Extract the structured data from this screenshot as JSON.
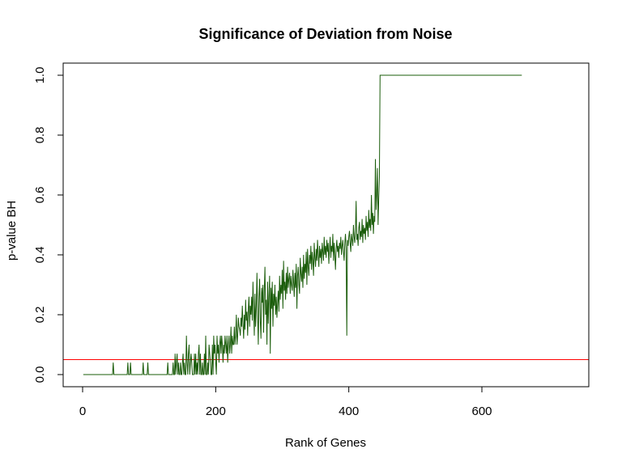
{
  "chart_data": {
    "type": "line",
    "title": "Significance of Deviation from Noise",
    "xlabel": "Rank of Genes",
    "ylabel": "p-value BH",
    "xlim": [
      1,
      731
    ],
    "ylim": [
      0,
      1
    ],
    "x_ticks": [
      0,
      200,
      400,
      600
    ],
    "y_ticks": [
      0.0,
      0.2,
      0.4,
      0.6,
      0.8,
      1.0
    ],
    "x_tick_labels": [
      "0",
      "200",
      "400",
      "600"
    ],
    "y_tick_labels": [
      "0.0",
      "0.2",
      "0.4",
      "0.6",
      "0.8",
      "1.0"
    ],
    "grid": false,
    "series": [
      {
        "color": "#1a5c0a",
        "x_start": 1,
        "x_step": 1,
        "values": [
          0,
          0,
          0,
          0,
          0,
          0,
          0,
          0,
          0,
          0,
          0,
          0,
          0,
          0,
          0,
          0,
          0,
          0,
          0,
          0,
          0,
          0,
          0,
          0,
          0,
          0,
          0,
          0,
          0,
          0,
          0,
          0,
          0,
          0,
          0,
          0,
          0,
          0,
          0,
          0,
          0,
          0,
          0,
          0,
          0,
          0.04,
          0,
          0,
          0,
          0,
          0,
          0,
          0,
          0,
          0,
          0,
          0,
          0,
          0,
          0,
          0,
          0,
          0,
          0,
          0,
          0,
          0,
          0.04,
          0,
          0,
          0,
          0.04,
          0,
          0,
          0,
          0,
          0,
          0,
          0,
          0,
          0,
          0,
          0,
          0,
          0,
          0,
          0,
          0,
          0,
          0,
          0.04,
          0,
          0,
          0,
          0,
          0,
          0,
          0.04,
          0,
          0,
          0,
          0,
          0,
          0,
          0,
          0,
          0,
          0,
          0,
          0,
          0,
          0,
          0,
          0,
          0,
          0,
          0,
          0,
          0,
          0,
          0,
          0,
          0,
          0,
          0,
          0,
          0,
          0.04,
          0,
          0,
          0,
          0,
          0,
          0,
          0,
          0.04,
          0,
          0,
          0.07,
          0,
          0.04,
          0.07,
          0,
          0.04,
          0,
          0,
          0.04,
          0,
          0,
          0.04,
          0.07,
          0,
          0.04,
          0,
          0,
          0.13,
          0.04,
          0,
          0.07,
          0.1,
          0,
          0.04,
          0.07,
          0.04,
          0,
          0,
          0,
          0.07,
          0,
          0.07,
          0,
          0.04,
          0,
          0.07,
          0.1,
          0,
          0.07,
          0,
          0,
          0.04,
          0,
          0,
          0.07,
          0,
          0.13,
          0,
          0,
          0.04,
          0,
          0.1,
          0.07,
          0.04,
          0,
          0,
          0.1,
          0,
          0.13,
          0.07,
          0.1,
          0.04,
          0,
          0.13,
          0.07,
          0.1,
          0.04,
          0.1,
          0.13,
          0.07,
          0.13,
          0.1,
          0.04,
          0.1,
          0.07,
          0.13,
          0.1,
          0.07,
          0.13,
          0.04,
          0.1,
          0.13,
          0.07,
          0.1,
          0.16,
          0.07,
          0.13,
          0.1,
          0.1,
          0.16,
          0.1,
          0.13,
          0.2,
          0.1,
          0.13,
          0.19,
          0.16,
          0.15,
          0.13,
          0.19,
          0.16,
          0.23,
          0.17,
          0.12,
          0.2,
          0.15,
          0.25,
          0.18,
          0.21,
          0.13,
          0.22,
          0.26,
          0.16,
          0.23,
          0.2,
          0.26,
          0.18,
          0.31,
          0.22,
          0.13,
          0.27,
          0.16,
          0.23,
          0.34,
          0.2,
          0.1,
          0.26,
          0.32,
          0.18,
          0.12,
          0.29,
          0.24,
          0.3,
          0.14,
          0.28,
          0.36,
          0.2,
          0.25,
          0.1,
          0.31,
          0.17,
          0.26,
          0.33,
          0.07,
          0.29,
          0.22,
          0.31,
          0.16,
          0.27,
          0.23,
          0.3,
          0.2,
          0.26,
          0.19,
          0.24,
          0.28,
          0.21,
          0.33,
          0.25,
          0.3,
          0.27,
          0.35,
          0.22,
          0.38,
          0.28,
          0.31,
          0.25,
          0.34,
          0.27,
          0.36,
          0.29,
          0.32,
          0.34,
          0.27,
          0.33,
          0.3,
          0.28,
          0.35,
          0.31,
          0.26,
          0.34,
          0.29,
          0.37,
          0.22,
          0.33,
          0.36,
          0.3,
          0.27,
          0.39,
          0.34,
          0.31,
          0.36,
          0.29,
          0.4,
          0.32,
          0.37,
          0.34,
          0.41,
          0.3,
          0.42,
          0.36,
          0.33,
          0.4,
          0.37,
          0.43,
          0.35,
          0.41,
          0.38,
          0.33,
          0.44,
          0.39,
          0.36,
          0.42,
          0.38,
          0.45,
          0.4,
          0.36,
          0.43,
          0.39,
          0.42,
          0.37,
          0.44,
          0.41,
          0.38,
          0.46,
          0.4,
          0.43,
          0.39,
          0.45,
          0.41,
          0.44,
          0.37,
          0.42,
          0.46,
          0.39,
          0.43,
          0.41,
          0.47,
          0.38,
          0.44,
          0.4,
          0.35,
          0.42,
          0.45,
          0.41,
          0.43,
          0.39,
          0.44,
          0.42,
          0.46,
          0.4,
          0.43,
          0.45,
          0.41,
          0.38,
          0.44,
          0.47,
          0.42,
          0.13,
          0.45,
          0.43,
          0.46,
          0.48,
          0.44,
          0.41,
          0.47,
          0.45,
          0.43,
          0.5,
          0.46,
          0.44,
          0.48,
          0.58,
          0.45,
          0.47,
          0.43,
          0.49,
          0.51,
          0.45,
          0.48,
          0.46,
          0.52,
          0.44,
          0.5,
          0.47,
          0.49,
          0.45,
          0.53,
          0.48,
          0.51,
          0.46,
          0.55,
          0.49,
          0.52,
          0.48,
          0.6,
          0.5,
          0.54,
          0.47,
          0.53,
          0.51,
          0.72,
          0.55,
          0.6,
          0.69,
          0.5,
          0.59,
          0.66,
          1,
          1,
          1,
          1,
          1,
          1,
          1,
          1,
          1,
          1,
          1,
          1,
          1,
          1,
          1,
          1,
          1,
          1,
          1,
          1,
          1,
          1,
          1,
          1,
          1,
          1,
          1,
          1,
          1,
          1,
          1,
          1,
          1,
          1,
          1,
          1,
          1,
          1,
          1,
          1,
          1,
          1,
          1,
          1,
          1,
          1,
          1,
          1,
          1,
          1,
          1,
          1,
          1,
          1,
          1,
          1,
          1,
          1,
          1,
          1,
          1,
          1,
          1,
          1,
          1,
          1,
          1,
          1,
          1,
          1,
          1,
          1,
          1,
          1,
          1,
          1,
          1,
          1,
          1,
          1,
          1,
          1,
          1,
          1,
          1,
          1,
          1,
          1,
          1,
          1,
          1,
          1,
          1,
          1,
          1,
          1,
          1,
          1,
          1,
          1,
          1,
          1,
          1,
          1,
          1,
          1,
          1,
          1,
          1,
          1,
          1,
          1,
          1,
          1,
          1,
          1,
          1,
          1,
          1,
          1,
          1,
          1,
          1,
          1,
          1,
          1,
          1,
          1,
          1,
          1,
          1,
          1,
          1,
          1,
          1,
          1,
          1,
          1,
          1,
          1,
          1,
          1,
          1,
          1,
          1,
          1,
          1,
          1,
          1,
          1,
          1,
          1,
          1,
          1,
          1,
          1,
          1,
          1,
          1,
          1,
          1,
          1,
          1,
          1,
          1,
          1,
          1,
          1,
          1,
          1,
          1,
          1,
          1,
          1,
          1,
          1,
          1,
          1,
          1,
          1,
          1,
          1,
          1,
          1,
          1,
          1,
          1,
          1,
          1,
          1,
          1,
          1,
          1,
          1,
          1,
          1,
          1,
          1,
          1,
          1,
          1,
          1,
          1,
          1,
          1,
          1,
          1,
          1,
          1,
          1,
          1,
          1,
          1,
          1
        ]
      }
    ],
    "reference_lines": [
      {
        "orientation": "horizontal",
        "y": 0.05,
        "color": "#ff0000"
      }
    ]
  }
}
